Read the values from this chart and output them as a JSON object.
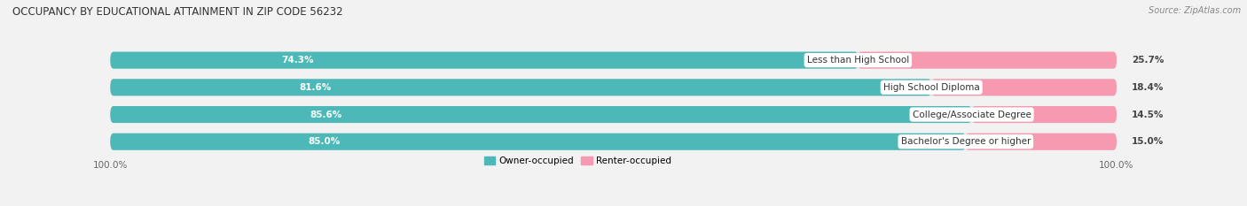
{
  "title": "OCCUPANCY BY EDUCATIONAL ATTAINMENT IN ZIP CODE 56232",
  "source": "Source: ZipAtlas.com",
  "categories": [
    "Less than High School",
    "High School Diploma",
    "College/Associate Degree",
    "Bachelor's Degree or higher"
  ],
  "owner_values": [
    74.3,
    81.6,
    85.6,
    85.0
  ],
  "renter_values": [
    25.7,
    18.4,
    14.5,
    15.0
  ],
  "owner_color": "#4cb8b8",
  "renter_color": "#f799b0",
  "background_color": "#f2f2f2",
  "bar_bg_color": "#e0e0e0",
  "axis_label_left": "100.0%",
  "axis_label_right": "100.0%",
  "legend_owner": "Owner-occupied",
  "legend_renter": "Renter-occupied",
  "bar_height": 0.62,
  "total_width": 100.0
}
